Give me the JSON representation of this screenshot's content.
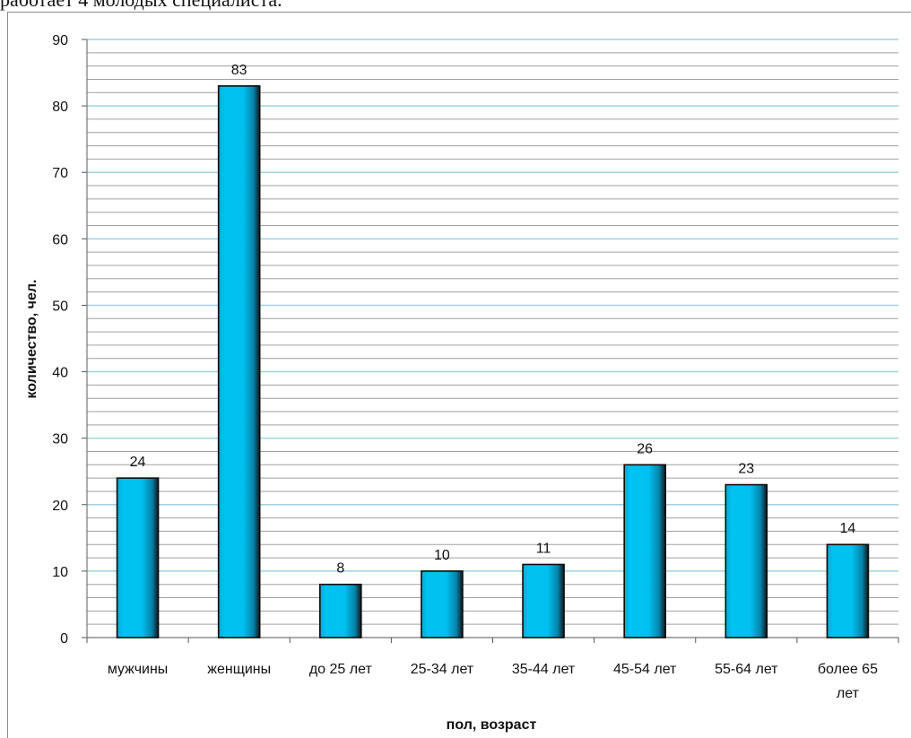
{
  "top_caption": "работает 4 молодых специалиста.",
  "chart_data": {
    "type": "bar",
    "categories": [
      "мужчины",
      "женщины",
      "до 25 лет",
      "25-34 лет",
      "35-44 лет",
      "45-54 лет",
      "55-64 лет",
      "более 65 лет"
    ],
    "values": [
      24,
      83,
      8,
      10,
      11,
      26,
      23,
      14
    ],
    "xlabel": "пол, возраст",
    "ylabel": "количество, чел.",
    "ylim": [
      0,
      90
    ],
    "yticks": [
      0,
      10,
      20,
      30,
      40,
      50,
      60,
      70,
      80,
      90
    ],
    "grid": true,
    "legend": "none",
    "bar_color": "#00bfef",
    "major_grid_color": "#9fd2e0",
    "minor_grid_color": "#a0a0a0"
  }
}
